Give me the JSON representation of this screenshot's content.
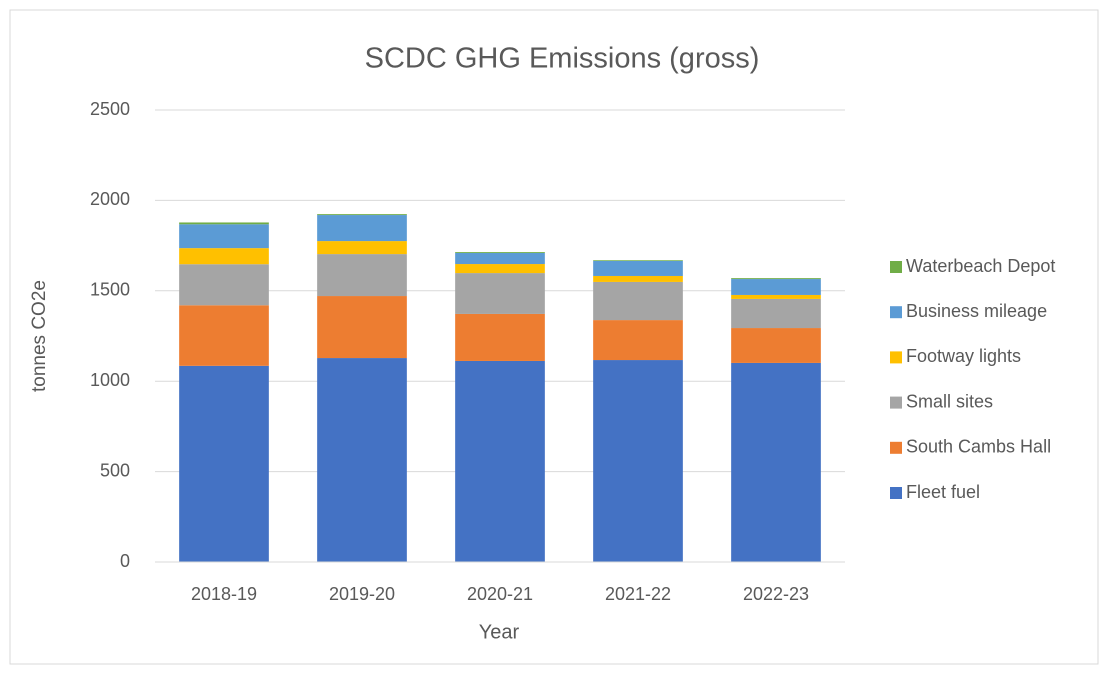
{
  "chart_data": {
    "type": "stacked_bar",
    "title": "SCDC GHG Emissions (gross)",
    "x_label": "Year",
    "y_label": "tonnes CO2e",
    "categories": [
      "2018-19",
      "2019-20",
      "2020-21",
      "2021-22",
      "2022-23"
    ],
    "series": [
      {
        "name": "Fleet fuel",
        "color": "#4472c4",
        "values": [
          1085,
          1128,
          1112,
          1117,
          1101
        ]
      },
      {
        "name": "South Cambs Hall",
        "color": "#ed7d31",
        "values": [
          335,
          343,
          260,
          221,
          193
        ]
      },
      {
        "name": "Small sites",
        "color": "#a5a5a5",
        "values": [
          227,
          232,
          226,
          211,
          161
        ]
      },
      {
        "name": "Footway lights",
        "color": "#ffc000",
        "values": [
          89,
          72,
          50,
          33,
          22
        ]
      },
      {
        "name": "Business mileage",
        "color": "#5b9bd5",
        "values": [
          132,
          144,
          61,
          83,
          88
        ]
      },
      {
        "name": "Waterbeach Depot",
        "color": "#70ad47",
        "values": [
          10,
          5,
          5,
          4,
          5
        ]
      }
    ],
    "ylim": [
      0,
      2500
    ],
    "yticks": [
      0,
      500,
      1000,
      1500,
      2000,
      2500
    ],
    "grid": true,
    "legend": "right"
  }
}
